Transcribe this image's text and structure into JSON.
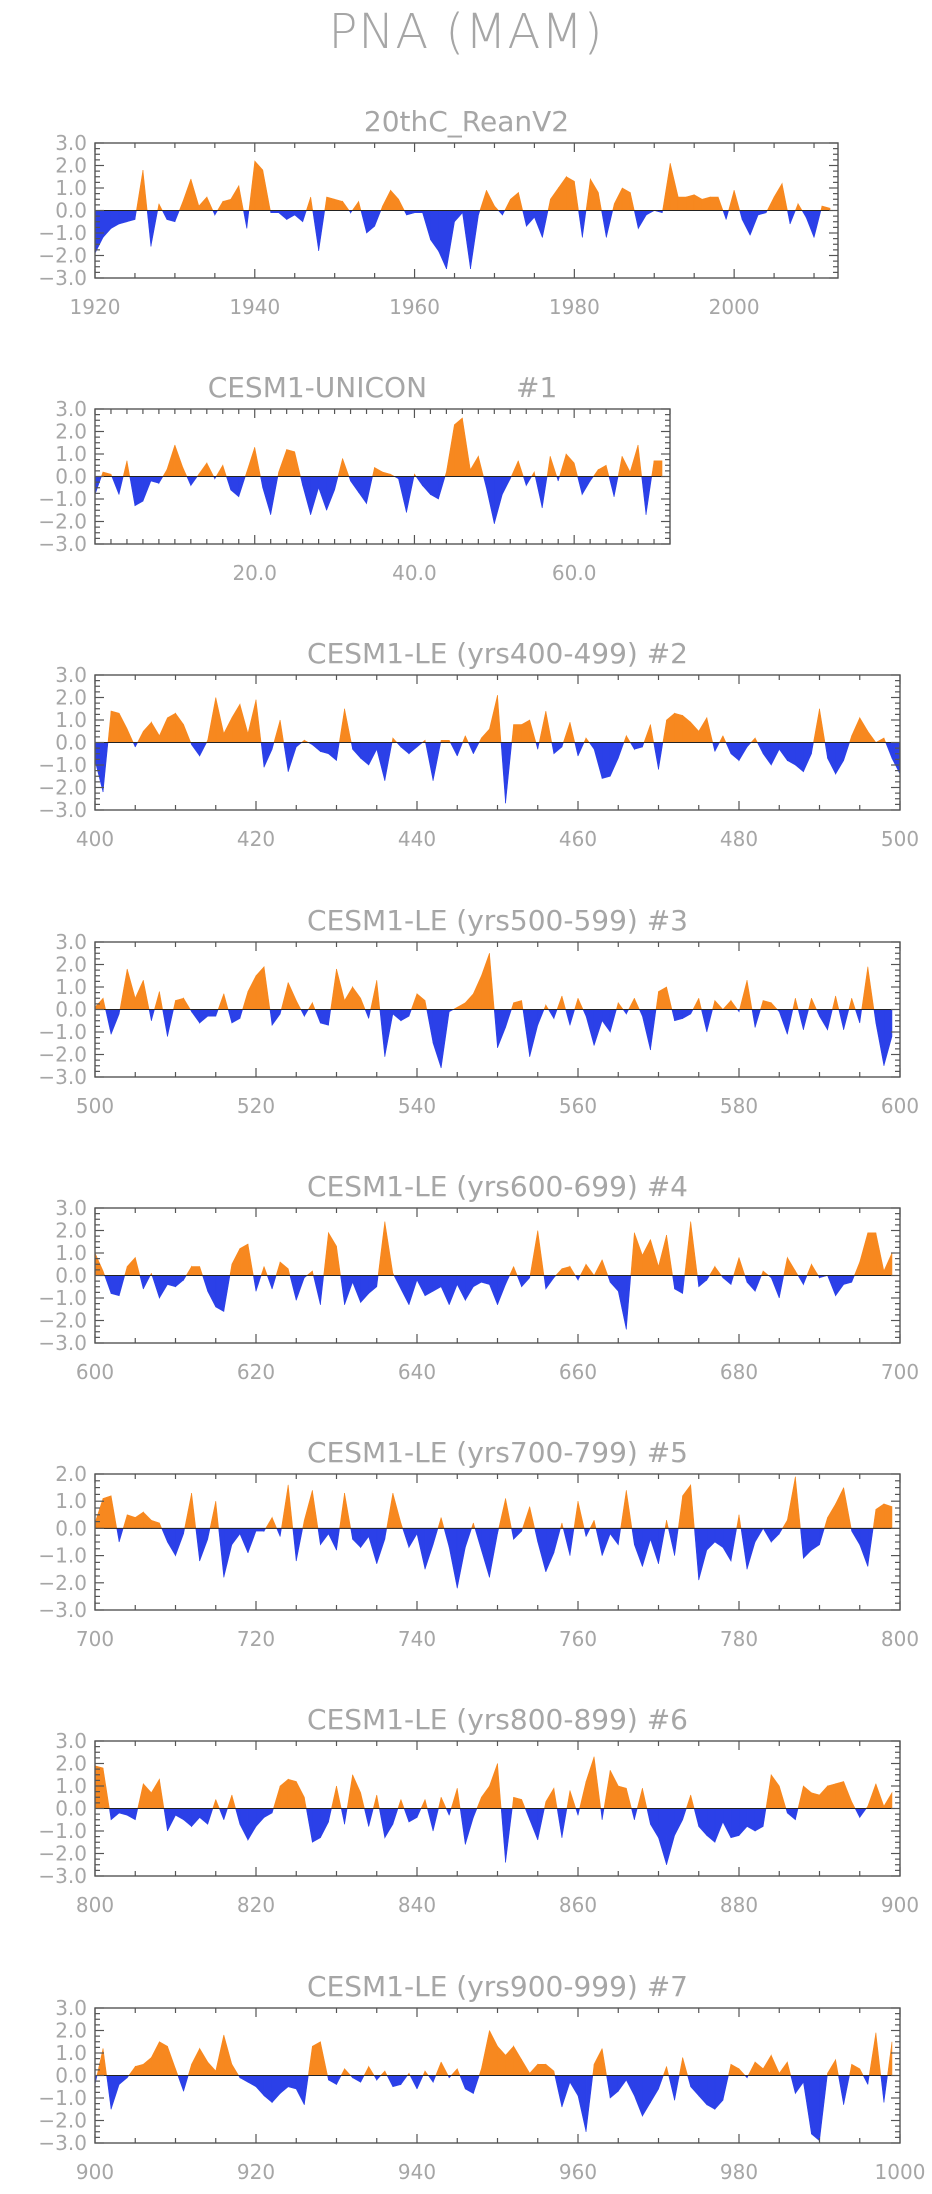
{
  "title": "PNA (MAM)",
  "colors": {
    "positive": "#f7881f",
    "negative": "#2b40e8",
    "text": "#a6a6a6",
    "axis": "#555555"
  },
  "chart_data": [
    {
      "type": "area",
      "title": "20thC_ReanV2",
      "start": 1920,
      "xlim": [
        1920,
        2013
      ],
      "ylim": [
        -3,
        3
      ],
      "xticks": [
        1920,
        1940,
        1960,
        1980,
        2000
      ],
      "xtick_labels": [
        "1920",
        "1940",
        "1960",
        "1980",
        "2000"
      ],
      "yticks": [
        3,
        2,
        1,
        0,
        -1,
        -2,
        -3
      ],
      "ytick_labels": [
        "3.0",
        "2.0",
        "1.0",
        "0.0",
        "−1.0",
        "−2.0",
        "−3.0"
      ],
      "values": [
        -1.9,
        -1.2,
        -0.8,
        -0.6,
        -0.5,
        -0.4,
        1.8,
        -1.6,
        0.3,
        -0.4,
        -0.5,
        0.4,
        1.4,
        0.2,
        0.6,
        -0.2,
        0.4,
        0.5,
        1.1,
        -0.8,
        2.2,
        1.8,
        -0.1,
        -0.1,
        -0.4,
        -0.2,
        -0.5,
        0.6,
        -1.8,
        0.6,
        0.5,
        0.4,
        -0.1,
        0.4,
        -1.0,
        -0.7,
        0.2,
        0.9,
        0.5,
        -0.2,
        -0.1,
        -0.1,
        -1.3,
        -1.8,
        -2.6,
        -0.5,
        -0.1,
        -2.6,
        -0.2,
        0.9,
        0.2,
        -0.2,
        0.5,
        0.8,
        -0.7,
        -0.3,
        -1.2,
        0.5,
        1.0,
        1.5,
        1.3,
        -1.2,
        1.4,
        0.8,
        -1.2,
        0.3,
        1.0,
        0.8,
        -0.8,
        -0.2,
        0.0,
        -0.1,
        2.1,
        0.6,
        0.6,
        0.7,
        0.5,
        0.6,
        0.6,
        -0.4,
        0.9,
        -0.4,
        -1.1,
        -0.2,
        -0.1,
        0.6,
        1.2,
        -0.6,
        0.3,
        -0.3,
        -1.2,
        0.2,
        0.1
      ]
    },
    {
      "type": "area",
      "title": "CESM1-UNICON          #1",
      "start": 0,
      "xlim": [
        0,
        72
      ],
      "ylim": [
        -3,
        3
      ],
      "xticks": [
        20,
        40,
        60
      ],
      "xtick_labels": [
        "20.0",
        "40.0",
        "60.0"
      ],
      "yticks": [
        3,
        2,
        1,
        0,
        -1,
        -2,
        -3
      ],
      "ytick_labels": [
        "3.0",
        "2.0",
        "1.0",
        "0.0",
        "−1.0",
        "−2.0",
        "−3.0"
      ],
      "values": [
        -0.8,
        0.2,
        0.1,
        -0.8,
        0.7,
        -1.3,
        -1.1,
        -0.2,
        -0.3,
        0.3,
        1.4,
        0.4,
        -0.4,
        0.1,
        0.6,
        -0.1,
        0.5,
        -0.6,
        -0.9,
        0.2,
        1.3,
        -0.5,
        -1.7,
        0.2,
        1.2,
        1.1,
        -0.4,
        -1.7,
        -0.5,
        -1.5,
        -0.6,
        0.8,
        -0.2,
        -0.7,
        -1.2,
        0.4,
        0.2,
        0.1,
        -0.1,
        -1.6,
        0.1,
        -0.4,
        -0.8,
        -1.0,
        0.2,
        2.3,
        2.6,
        0.3,
        0.9,
        -0.5,
        -2.1,
        -0.8,
        -0.1,
        0.7,
        -0.4,
        0.2,
        -1.4,
        0.9,
        -0.2,
        1.0,
        0.6,
        -0.8,
        -0.2,
        0.3,
        0.5,
        -0.9,
        0.9,
        0.2,
        1.4,
        -1.7,
        0.7,
        0.7
      ]
    },
    {
      "type": "area",
      "title": "CESM1-LE (yrs400-499) #2",
      "start": 400,
      "xlim": [
        400,
        500
      ],
      "ylim": [
        -3,
        3
      ],
      "xticks": [
        400,
        420,
        440,
        460,
        480,
        500
      ],
      "xtick_labels": [
        "400",
        "420",
        "440",
        "460",
        "480",
        "500"
      ],
      "yticks": [
        3,
        2,
        1,
        0,
        -1,
        -2,
        -3
      ],
      "ytick_labels": [
        "3.0",
        "2.0",
        "1.0",
        "0.0",
        "−1.0",
        "−2.0",
        "−3.0"
      ],
      "values": [
        -0.8,
        -2.2,
        1.4,
        1.3,
        0.6,
        -0.2,
        0.5,
        0.9,
        0.3,
        1.1,
        1.3,
        0.8,
        -0.1,
        -0.6,
        0.1,
        2.0,
        0.4,
        1.1,
        1.7,
        0.4,
        1.9,
        -1.1,
        -0.3,
        1.0,
        -1.3,
        -0.2,
        0.1,
        -0.1,
        -0.4,
        -0.5,
        -0.8,
        1.5,
        -0.3,
        -0.7,
        -1.0,
        -0.3,
        -1.7,
        0.2,
        -0.2,
        -0.5,
        -0.2,
        0.1,
        -1.7,
        0.1,
        0.1,
        -0.6,
        0.3,
        -0.5,
        0.2,
        0.6,
        2.1,
        -2.7,
        0.8,
        0.8,
        1.0,
        -0.3,
        1.4,
        -0.5,
        -0.2,
        0.9,
        -0.6,
        0.2,
        -0.3,
        -1.6,
        -1.5,
        -0.7,
        0.3,
        -0.3,
        -0.2,
        0.8,
        -1.2,
        1.0,
        1.3,
        1.2,
        0.9,
        0.5,
        1.1,
        -0.4,
        0.3,
        -0.5,
        -0.8,
        -0.2,
        0.2,
        -0.5,
        -1.0,
        -0.3,
        -0.8,
        -1.0,
        -1.3,
        -0.5,
        1.5,
        -0.7,
        -1.4,
        -0.8,
        0.3,
        1.1,
        0.5,
        0.0,
        0.2,
        -0.7,
        -1.4
      ]
    },
    {
      "type": "area",
      "title": "CESM1-LE (yrs500-599) #3",
      "start": 500,
      "xlim": [
        500,
        600
      ],
      "ylim": [
        -3,
        3
      ],
      "xticks": [
        500,
        520,
        540,
        560,
        580,
        600
      ],
      "xtick_labels": [
        "500",
        "520",
        "540",
        "560",
        "580",
        "600"
      ],
      "yticks": [
        3,
        2,
        1,
        0,
        -1,
        -2,
        -3
      ],
      "ytick_labels": [
        "3.0",
        "2.0",
        "1.0",
        "0.0",
        "−1.0",
        "−2.0",
        "−3.0"
      ],
      "values": [
        0.1,
        0.5,
        -1.1,
        -0.2,
        1.8,
        0.5,
        1.3,
        -0.5,
        0.8,
        -1.2,
        0.4,
        0.5,
        -0.1,
        -0.6,
        -0.3,
        -0.3,
        0.7,
        -0.6,
        -0.4,
        0.8,
        1.5,
        1.9,
        -0.7,
        -0.2,
        1.2,
        0.4,
        -0.3,
        0.3,
        -0.6,
        -0.7,
        1.8,
        0.4,
        1.0,
        0.5,
        -0.4,
        1.3,
        -2.1,
        -0.2,
        -0.5,
        -0.3,
        0.7,
        0.4,
        -1.5,
        -2.6,
        -0.1,
        0.1,
        0.3,
        0.7,
        1.5,
        2.5,
        -1.7,
        -0.8,
        0.3,
        0.4,
        -2.1,
        -0.7,
        0.2,
        -0.4,
        0.6,
        -0.7,
        0.5,
        -0.3,
        -1.6,
        -0.5,
        -1.0,
        0.3,
        -0.2,
        0.5,
        -0.3,
        -1.8,
        0.8,
        1.0,
        -0.5,
        -0.4,
        -0.2,
        0.5,
        -1.0,
        0.4,
        0.0,
        0.4,
        -0.1,
        1.3,
        -0.8,
        0.4,
        0.3,
        -0.1,
        -1.1,
        0.5,
        -0.9,
        0.5,
        -0.3,
        -0.9,
        0.6,
        -0.9,
        0.5,
        -0.6,
        1.9,
        -0.6,
        -2.5,
        -1.2
      ]
    },
    {
      "type": "area",
      "title": "CESM1-LE (yrs600-699) #4",
      "start": 600,
      "xlim": [
        600,
        700
      ],
      "ylim": [
        -3,
        3
      ],
      "xticks": [
        600,
        620,
        640,
        660,
        680,
        700
      ],
      "xtick_labels": [
        "600",
        "620",
        "640",
        "660",
        "680",
        "700"
      ],
      "yticks": [
        3,
        2,
        1,
        0,
        -1,
        -2,
        -3
      ],
      "ytick_labels": [
        "3.0",
        "2.0",
        "1.0",
        "0.0",
        "−1.0",
        "−2.0",
        "−3.0"
      ],
      "values": [
        1.0,
        0.2,
        -0.8,
        -0.9,
        0.4,
        0.8,
        -0.6,
        0.1,
        -1.0,
        -0.4,
        -0.5,
        -0.2,
        0.4,
        0.4,
        -0.7,
        -1.4,
        -1.6,
        0.5,
        1.2,
        1.4,
        -0.7,
        0.4,
        -0.6,
        0.6,
        0.3,
        -1.1,
        -0.1,
        0.2,
        -1.3,
        1.9,
        1.3,
        -1.3,
        -0.3,
        -1.2,
        -0.8,
        -0.5,
        2.4,
        0.1,
        -0.6,
        -1.3,
        -0.2,
        -0.9,
        -0.7,
        -0.5,
        -1.3,
        -0.4,
        -1.1,
        -0.5,
        -0.3,
        -0.4,
        -1.3,
        -0.4,
        0.4,
        -0.5,
        -0.1,
        2.0,
        -0.6,
        -0.1,
        0.3,
        0.4,
        -0.2,
        0.5,
        0.0,
        0.7,
        -0.3,
        -0.7,
        -2.4,
        1.9,
        0.9,
        1.6,
        0.4,
        1.8,
        -0.6,
        -0.8,
        2.4,
        -0.5,
        -0.2,
        0.4,
        -0.1,
        -0.4,
        0.8,
        -0.3,
        -0.7,
        0.2,
        -0.1,
        -1.0,
        0.8,
        0.2,
        -0.4,
        0.5,
        -0.1,
        0.0,
        -0.9,
        -0.4,
        -0.3,
        0.6,
        1.9,
        1.9,
        0.2,
        1.0
      ]
    },
    {
      "type": "area",
      "title": "CESM1-LE (yrs700-799) #5",
      "start": 700,
      "xlim": [
        700,
        800
      ],
      "ylim": [
        -3,
        2
      ],
      "xticks": [
        700,
        720,
        740,
        760,
        780,
        800
      ],
      "xtick_labels": [
        "700",
        "720",
        "740",
        "760",
        "780",
        "800"
      ],
      "yticks": [
        2,
        1,
        0,
        -1,
        -2,
        -3
      ],
      "ytick_labels": [
        "2.0",
        "1.0",
        "0.0",
        "−1.0",
        "−2.0",
        "−3.0"
      ],
      "values": [
        0.2,
        1.1,
        1.2,
        -0.5,
        0.5,
        0.4,
        0.6,
        0.3,
        0.2,
        -0.5,
        -1.0,
        -0.2,
        1.3,
        -1.2,
        -0.4,
        1.0,
        -1.8,
        -0.6,
        -0.2,
        -0.9,
        -0.1,
        -0.1,
        0.4,
        -0.3,
        1.6,
        -1.2,
        0.3,
        1.4,
        -0.6,
        -0.2,
        -0.8,
        1.3,
        -0.4,
        -0.7,
        -0.3,
        -1.3,
        -0.4,
        1.3,
        0.2,
        -0.7,
        -0.2,
        -1.5,
        -0.6,
        0.4,
        -0.7,
        -2.2,
        -0.7,
        0.2,
        -0.8,
        -1.8,
        -0.2,
        1.1,
        -0.4,
        -0.1,
        0.8,
        -0.5,
        -1.6,
        -0.9,
        0.2,
        -1.0,
        1.0,
        -0.3,
        0.3,
        -1.0,
        -0.2,
        -0.6,
        1.4,
        -0.6,
        -1.4,
        -0.4,
        -1.3,
        0.3,
        -1.0,
        1.2,
        1.6,
        -1.9,
        -0.8,
        -0.5,
        -0.7,
        -1.2,
        0.5,
        -1.5,
        -0.5,
        0.0,
        -0.5,
        -0.2,
        0.3,
        1.9,
        -1.1,
        -0.8,
        -0.6,
        0.4,
        0.9,
        1.5,
        -0.1,
        -0.6,
        -1.4,
        0.7,
        0.9,
        0.8
      ]
    },
    {
      "type": "area",
      "title": "CESM1-LE (yrs800-899) #6",
      "start": 800,
      "xlim": [
        800,
        900
      ],
      "ylim": [
        -3,
        3
      ],
      "xticks": [
        800,
        820,
        840,
        860,
        880,
        900
      ],
      "xtick_labels": [
        "800",
        "820",
        "840",
        "860",
        "880",
        "900"
      ],
      "yticks": [
        3,
        2,
        1,
        0,
        -1,
        -2,
        -3
      ],
      "ytick_labels": [
        "3.0",
        "2.0",
        "1.0",
        "0.0",
        "−1.0",
        "−2.0",
        "−3.0"
      ],
      "values": [
        1.9,
        1.8,
        -0.5,
        -0.2,
        -0.3,
        -0.5,
        1.1,
        0.7,
        1.3,
        -1.0,
        -0.3,
        -0.5,
        -0.8,
        -0.4,
        -0.7,
        0.4,
        -0.5,
        0.6,
        -0.7,
        -1.4,
        -0.8,
        -0.4,
        -0.2,
        1.0,
        1.3,
        1.2,
        0.5,
        -1.5,
        -1.3,
        -0.6,
        1.0,
        -0.7,
        1.5,
        0.7,
        -0.8,
        0.6,
        -1.3,
        -0.7,
        0.4,
        -0.6,
        -0.4,
        0.4,
        -1.0,
        0.5,
        -0.3,
        0.9,
        -1.6,
        -0.4,
        0.5,
        1.0,
        2.0,
        -2.4,
        0.5,
        0.4,
        -0.5,
        -1.4,
        0.3,
        0.9,
        -1.3,
        0.8,
        -0.3,
        1.2,
        2.3,
        -0.5,
        1.7,
        1.0,
        0.9,
        -0.5,
        0.9,
        -0.7,
        -1.3,
        -2.5,
        -1.2,
        -0.5,
        0.6,
        -0.8,
        -1.2,
        -1.5,
        -0.6,
        -1.3,
        -1.2,
        -0.8,
        -1.0,
        -0.8,
        1.5,
        1.0,
        -0.2,
        -0.5,
        1.0,
        0.7,
        0.6,
        1.0,
        1.1,
        1.2,
        0.3,
        -0.4,
        0.1,
        1.1,
        0.1,
        0.7
      ]
    },
    {
      "type": "area",
      "title": "CESM1-LE (yrs900-999) #7",
      "start": 900,
      "xlim": [
        900,
        1000
      ],
      "ylim": [
        -3,
        3
      ],
      "xticks": [
        900,
        920,
        940,
        960,
        980,
        1000
      ],
      "xtick_labels": [
        "900",
        "920",
        "940",
        "960",
        "980",
        "1000"
      ],
      "yticks": [
        3,
        2,
        1,
        0,
        -1,
        -2,
        -3
      ],
      "ytick_labels": [
        "3.0",
        "2.0",
        "1.0",
        "0.0",
        "−1.0",
        "−2.0",
        "−3.0"
      ],
      "values": [
        -0.4,
        1.2,
        -1.5,
        -0.4,
        -0.1,
        0.4,
        0.5,
        0.8,
        1.5,
        1.3,
        0.3,
        -0.7,
        0.5,
        1.2,
        0.6,
        0.2,
        1.8,
        0.5,
        -0.1,
        -0.3,
        -0.5,
        -0.9,
        -1.2,
        -0.8,
        -0.5,
        -0.6,
        -1.3,
        1.3,
        1.5,
        -0.2,
        -0.4,
        0.3,
        -0.1,
        -0.3,
        0.4,
        -0.2,
        0.2,
        -0.5,
        -0.4,
        0.1,
        -0.6,
        0.2,
        -0.3,
        0.6,
        -0.1,
        0.3,
        -0.6,
        -0.8,
        0.3,
        2.0,
        1.3,
        0.9,
        1.3,
        0.7,
        0.1,
        0.5,
        0.5,
        0.2,
        -1.4,
        -0.3,
        -0.9,
        -2.5,
        0.5,
        1.2,
        -1.0,
        -0.7,
        -0.2,
        -0.9,
        -1.8,
        -1.2,
        -0.6,
        0.4,
        -1.1,
        0.8,
        -0.5,
        -0.9,
        -1.3,
        -1.5,
        -1.1,
        0.5,
        0.3,
        -0.1,
        0.6,
        0.3,
        0.9,
        0.1,
        0.6,
        -0.8,
        -0.3,
        -2.6,
        -2.9,
        0.1,
        0.7,
        -1.3,
        0.5,
        0.3,
        -0.4,
        1.9,
        -1.2,
        1.5
      ]
    }
  ]
}
